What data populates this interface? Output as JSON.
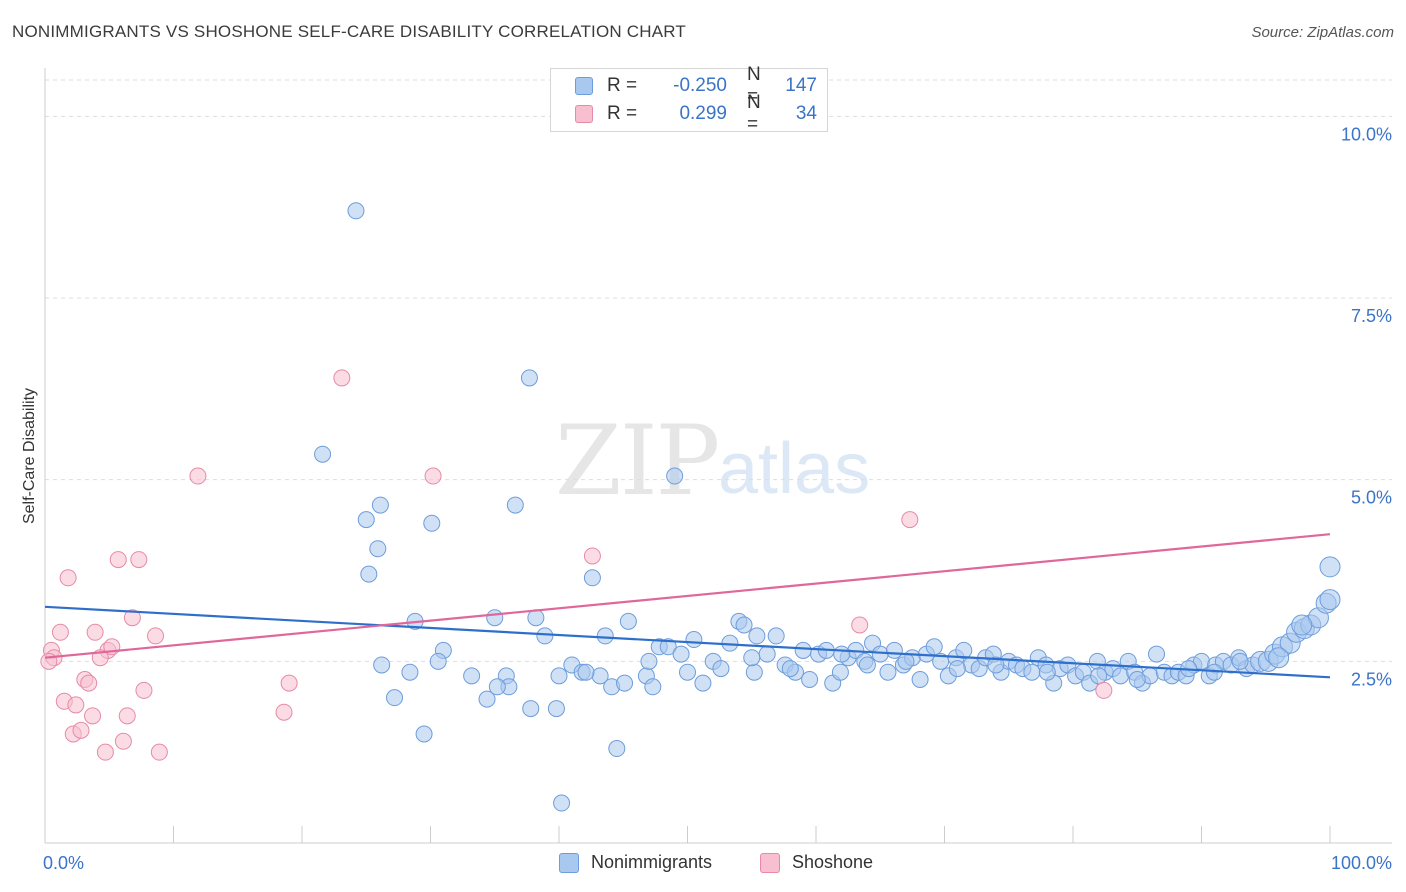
{
  "header": {
    "title": "NONIMMIGRANTS VS SHOSHONE SELF-CARE DISABILITY CORRELATION CHART",
    "source": "Source: ZipAtlas.com"
  },
  "watermark": {
    "zip": "ZIP",
    "atlas": "atlas"
  },
  "legend_top": {
    "rows": [
      {
        "r_label": "R =",
        "r_value": "-0.250",
        "n_label": "N =",
        "n_value": "147"
      },
      {
        "r_label": "R =",
        "r_value": "0.299",
        "n_label": "N =",
        "n_value": "34"
      }
    ]
  },
  "legend_bottom": {
    "items": [
      "Nonimmigrants",
      "Shoshone"
    ]
  },
  "colors": {
    "blue_fill": "#a9c8ef",
    "blue_stroke": "#6d9ddb",
    "blue_line": "#2f6fcc",
    "pink_fill": "#f7bfd0",
    "pink_stroke": "#e68aa8",
    "pink_line": "#e0679a",
    "tick_label": "#3a74c9",
    "grid": "#dddddd"
  },
  "chart_data": {
    "type": "scatter",
    "title": "NONIMMIGRANTS VS SHOSHONE SELF-CARE DISABILITY CORRELATION CHART",
    "xlabel": "",
    "ylabel": "Self-Care Disability",
    "xlim": [
      0,
      100
    ],
    "ylim": [
      0,
      10.5
    ],
    "x_tick_labels": [
      "0.0%",
      "100.0%"
    ],
    "y_ticks": [
      2.5,
      5.0,
      7.5,
      10.0
    ],
    "y_tick_labels": [
      "2.5%",
      "5.0%",
      "7.5%",
      "10.0%"
    ],
    "grid": "horizontal dashed",
    "series": [
      {
        "name": "Nonimmigrants",
        "color": "#a9c8ef",
        "trend": {
          "x": [
            0,
            100
          ],
          "y": [
            3.25,
            2.28
          ]
        },
        "points": [
          [
            24.2,
            8.7
          ],
          [
            37.7,
            6.4
          ],
          [
            21.6,
            5.35
          ],
          [
            49.0,
            5.05
          ],
          [
            36.6,
            4.65
          ],
          [
            26.1,
            4.65
          ],
          [
            25.0,
            4.45
          ],
          [
            30.1,
            4.4
          ],
          [
            25.9,
            4.05
          ],
          [
            25.2,
            3.7
          ],
          [
            42.6,
            3.65
          ],
          [
            28.8,
            3.05
          ],
          [
            35.0,
            3.1
          ],
          [
            38.2,
            3.1
          ],
          [
            45.4,
            3.05
          ],
          [
            38.9,
            2.85
          ],
          [
            43.6,
            2.85
          ],
          [
            31.0,
            2.65
          ],
          [
            30.6,
            2.5
          ],
          [
            26.2,
            2.45
          ],
          [
            28.4,
            2.35
          ],
          [
            33.2,
            2.3
          ],
          [
            35.9,
            2.3
          ],
          [
            40.0,
            2.3
          ],
          [
            41.0,
            2.45
          ],
          [
            41.8,
            2.35
          ],
          [
            43.2,
            2.3
          ],
          [
            44.1,
            2.15
          ],
          [
            45.1,
            2.2
          ],
          [
            46.8,
            2.3
          ],
          [
            47.3,
            2.15
          ],
          [
            47.8,
            2.7
          ],
          [
            36.1,
            2.15
          ],
          [
            35.2,
            2.15
          ],
          [
            34.4,
            1.98
          ],
          [
            27.2,
            2.0
          ],
          [
            37.8,
            1.85
          ],
          [
            39.8,
            1.85
          ],
          [
            29.5,
            1.5
          ],
          [
            44.5,
            1.3
          ],
          [
            40.2,
            0.55
          ],
          [
            42.1,
            2.35
          ],
          [
            48.5,
            2.7
          ],
          [
            49.5,
            2.6
          ],
          [
            50.5,
            2.8
          ],
          [
            51.2,
            2.2
          ],
          [
            52.0,
            2.5
          ],
          [
            52.6,
            2.4
          ],
          [
            53.3,
            2.75
          ],
          [
            54.0,
            3.05
          ],
          [
            54.4,
            3.0
          ],
          [
            55.4,
            2.85
          ],
          [
            55.2,
            2.35
          ],
          [
            56.2,
            2.6
          ],
          [
            56.9,
            2.85
          ],
          [
            57.6,
            2.45
          ],
          [
            58.4,
            2.35
          ],
          [
            59.0,
            2.65
          ],
          [
            59.5,
            2.25
          ],
          [
            60.2,
            2.6
          ],
          [
            60.8,
            2.65
          ],
          [
            61.3,
            2.2
          ],
          [
            61.9,
            2.35
          ],
          [
            62.5,
            2.55
          ],
          [
            63.1,
            2.65
          ],
          [
            63.8,
            2.5
          ],
          [
            64.4,
            2.75
          ],
          [
            65.0,
            2.6
          ],
          [
            65.6,
            2.35
          ],
          [
            66.1,
            2.65
          ],
          [
            66.8,
            2.45
          ],
          [
            67.5,
            2.55
          ],
          [
            68.1,
            2.25
          ],
          [
            68.6,
            2.6
          ],
          [
            69.2,
            2.7
          ],
          [
            69.7,
            2.5
          ],
          [
            70.3,
            2.3
          ],
          [
            70.9,
            2.55
          ],
          [
            71.5,
            2.65
          ],
          [
            72.1,
            2.45
          ],
          [
            72.7,
            2.4
          ],
          [
            73.2,
            2.55
          ],
          [
            73.8,
            2.6
          ],
          [
            74.4,
            2.35
          ],
          [
            75.0,
            2.5
          ],
          [
            75.6,
            2.45
          ],
          [
            76.1,
            2.4
          ],
          [
            76.8,
            2.35
          ],
          [
            77.3,
            2.55
          ],
          [
            77.9,
            2.45
          ],
          [
            78.5,
            2.2
          ],
          [
            79.0,
            2.4
          ],
          [
            79.6,
            2.45
          ],
          [
            80.2,
            2.3
          ],
          [
            80.8,
            2.35
          ],
          [
            81.3,
            2.2
          ],
          [
            81.9,
            2.5
          ],
          [
            82.5,
            2.35
          ],
          [
            83.1,
            2.4
          ],
          [
            83.7,
            2.3
          ],
          [
            84.3,
            2.5
          ],
          [
            84.8,
            2.35
          ],
          [
            85.4,
            2.2
          ],
          [
            86.0,
            2.3
          ],
          [
            86.5,
            2.6
          ],
          [
            87.1,
            2.35
          ],
          [
            87.7,
            2.3
          ],
          [
            88.2,
            2.35
          ],
          [
            88.8,
            2.3
          ],
          [
            89.4,
            2.45
          ],
          [
            90.0,
            2.5
          ],
          [
            90.6,
            2.3
          ],
          [
            91.1,
            2.45
          ],
          [
            91.7,
            2.5
          ],
          [
            92.3,
            2.45
          ],
          [
            92.9,
            2.55
          ],
          [
            93.5,
            2.4
          ],
          [
            94.0,
            2.45
          ],
          [
            94.6,
            2.5
          ],
          [
            95.2,
            2.5
          ],
          [
            95.7,
            2.6
          ],
          [
            96.3,
            2.7
          ],
          [
            96.9,
            2.75
          ],
          [
            97.4,
            2.9
          ],
          [
            98.0,
            2.95
          ],
          [
            98.5,
            3.0
          ],
          [
            99.1,
            3.1
          ],
          [
            99.7,
            3.3
          ],
          [
            100.0,
            3.35
          ],
          [
            100.0,
            3.8
          ],
          [
            97.8,
            3.0
          ],
          [
            96.0,
            2.55
          ],
          [
            93.0,
            2.5
          ],
          [
            91.0,
            2.35
          ],
          [
            89.0,
            2.4
          ],
          [
            85.0,
            2.25
          ],
          [
            82.0,
            2.3
          ],
          [
            78.0,
            2.35
          ],
          [
            74.0,
            2.45
          ],
          [
            71.0,
            2.4
          ],
          [
            67.0,
            2.5
          ],
          [
            64.0,
            2.45
          ],
          [
            62.0,
            2.6
          ],
          [
            58.0,
            2.4
          ],
          [
            55.0,
            2.55
          ],
          [
            50.0,
            2.35
          ],
          [
            47.0,
            2.5
          ]
        ]
      },
      {
        "name": "Shoshone",
        "color": "#f7bfd0",
        "trend": {
          "x": [
            0,
            100
          ],
          "y": [
            2.55,
            4.25
          ]
        },
        "points": [
          [
            23.1,
            6.4
          ],
          [
            30.2,
            5.05
          ],
          [
            11.9,
            5.05
          ],
          [
            67.3,
            4.45
          ],
          [
            7.3,
            3.9
          ],
          [
            5.7,
            3.9
          ],
          [
            42.6,
            3.95
          ],
          [
            1.8,
            3.65
          ],
          [
            6.8,
            3.1
          ],
          [
            1.2,
            2.9
          ],
          [
            3.9,
            2.9
          ],
          [
            8.6,
            2.85
          ],
          [
            63.4,
            3.0
          ],
          [
            0.5,
            2.65
          ],
          [
            0.7,
            2.55
          ],
          [
            0.3,
            2.5
          ],
          [
            4.9,
            2.65
          ],
          [
            5.2,
            2.7
          ],
          [
            4.3,
            2.55
          ],
          [
            3.1,
            2.25
          ],
          [
            3.4,
            2.2
          ],
          [
            19.0,
            2.2
          ],
          [
            7.7,
            2.1
          ],
          [
            1.5,
            1.95
          ],
          [
            2.4,
            1.9
          ],
          [
            3.7,
            1.75
          ],
          [
            6.4,
            1.75
          ],
          [
            18.6,
            1.8
          ],
          [
            2.2,
            1.5
          ],
          [
            2.8,
            1.55
          ],
          [
            6.1,
            1.4
          ],
          [
            4.7,
            1.25
          ],
          [
            8.9,
            1.25
          ],
          [
            82.4,
            2.1
          ]
        ]
      }
    ]
  }
}
